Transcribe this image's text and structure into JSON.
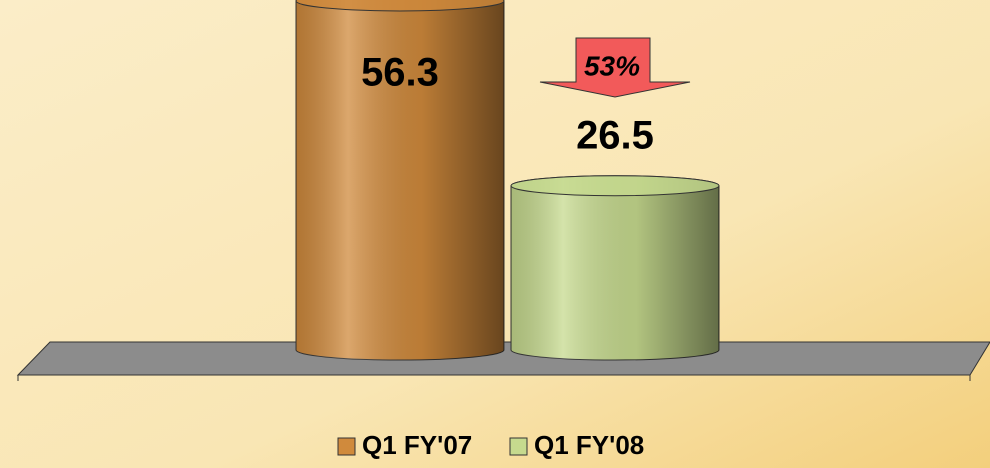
{
  "chart_data": {
    "type": "bar",
    "categories": [
      null
    ],
    "series": [
      {
        "name": "Q1 FY'07",
        "color": "#d08a3c",
        "values": [
          56.3
        ]
      },
      {
        "name": "Q1 FY'08",
        "color": "#c6da8e",
        "values": [
          26.5
        ]
      }
    ],
    "annotation": "53%",
    "annotation_color": "#f25a5a",
    "legend": "bottom"
  }
}
